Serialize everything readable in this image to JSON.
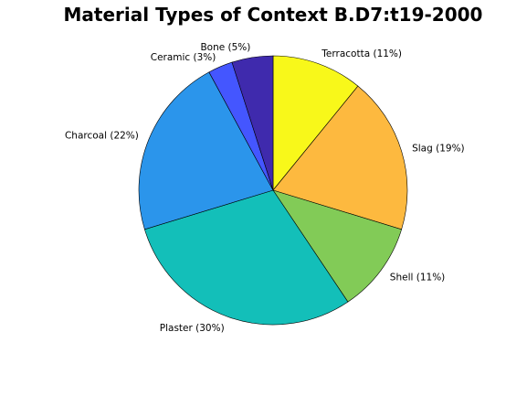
{
  "chart_data": {
    "type": "pie",
    "title": "Material Types of Context B.D7:t19-2000",
    "start_angle_deg": 90,
    "direction": "clockwise",
    "slices": [
      {
        "label": "Terracotta (11%)",
        "value": 11,
        "color": "#f8f81a"
      },
      {
        "label": "Slag (19%)",
        "value": 19,
        "color": "#fdb93f"
      },
      {
        "label": "Shell (11%)",
        "value": 11,
        "color": "#82cb57"
      },
      {
        "label": "Plaster (30%)",
        "value": 30,
        "color": "#13bfb9"
      },
      {
        "label": "Charcoal (22%)",
        "value": 22,
        "color": "#2b95eb"
      },
      {
        "label": "Ceramic (3%)",
        "value": 3,
        "color": "#4456ff"
      },
      {
        "label": "Bone (5%)",
        "value": 5,
        "color": "#3f2aad"
      }
    ]
  }
}
